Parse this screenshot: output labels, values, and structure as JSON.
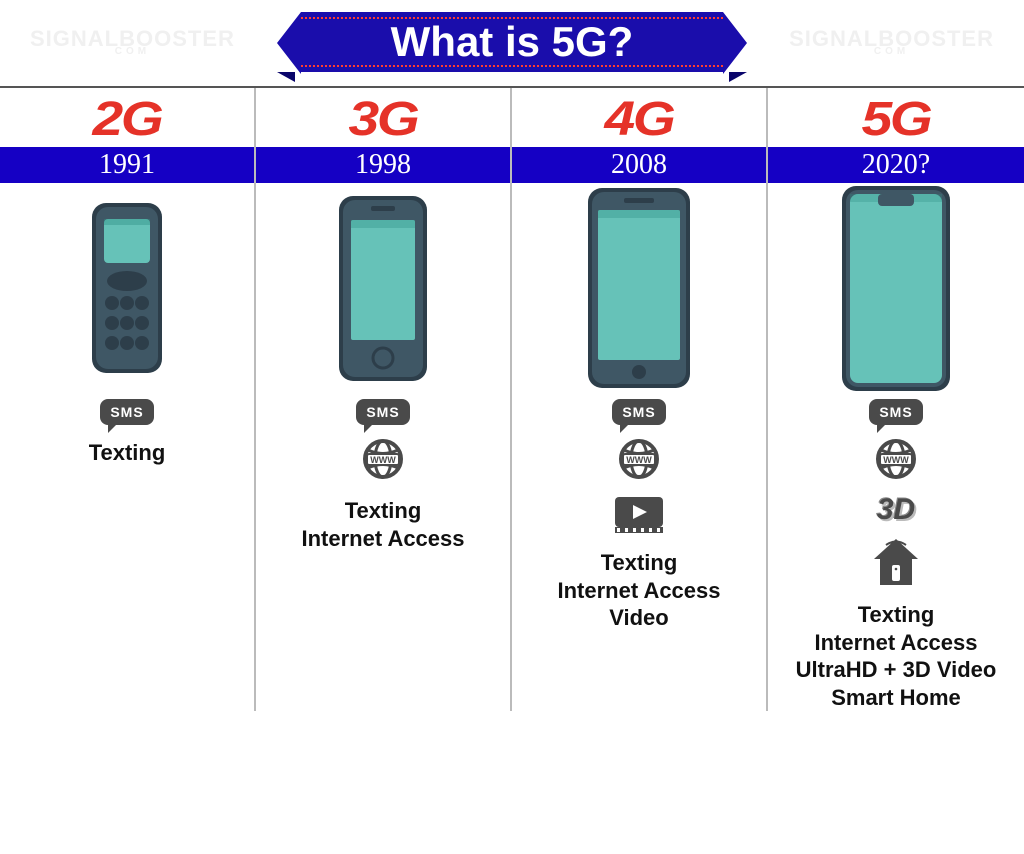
{
  "title": "What is 5G?",
  "watermark": {
    "line1": "SIGNALBOOSTER",
    "line2": "COM"
  },
  "colors": {
    "banner_bg": "#1a0dab",
    "banner_text": "#ffffff",
    "banner_dot": "#ff3b30",
    "year_bar_bg": "#1500c4",
    "year_text": "#ffffff",
    "grid_border_top": "#555555",
    "col_divider": "#bbbbbb",
    "icon_gray": "#4a4a4a",
    "phone_body": "#3f5765",
    "phone_body_dark": "#2d3e4a",
    "phone_screen": "#66c2b8",
    "phone_screen_dark": "#2d8f85",
    "feature_text": "#111111"
  },
  "typography": {
    "title_fontsize": 42,
    "gen_fontsize": 48,
    "year_fontsize": 28,
    "feature_fontsize": 22,
    "sms_fontsize": 14
  },
  "generations": [
    {
      "label": "2G",
      "label_color": "#e53228",
      "year": "1991",
      "phone": "candybar",
      "icons": [
        "sms"
      ],
      "features": [
        "Texting"
      ]
    },
    {
      "label": "3G",
      "label_color": "#e53228",
      "year": "1998",
      "phone": "early-smartphone",
      "icons": [
        "sms",
        "www"
      ],
      "features": [
        "Texting",
        "Internet Access"
      ]
    },
    {
      "label": "4G",
      "label_color": "#e53228",
      "year": "2008",
      "phone": "smartphone",
      "icons": [
        "sms",
        "www",
        "video"
      ],
      "features": [
        "Texting",
        "Internet Access",
        "Video"
      ]
    },
    {
      "label": "5G",
      "label_color": "#e53228",
      "year": "2020?",
      "phone": "bezel-less",
      "icons": [
        "sms",
        "www",
        "3d",
        "home"
      ],
      "features": [
        "Texting",
        "Internet Access",
        "UltraHD + 3D Video",
        "Smart Home"
      ]
    }
  ],
  "sms_text": "SMS",
  "www_text": "WWW",
  "threeD_text": "3D"
}
